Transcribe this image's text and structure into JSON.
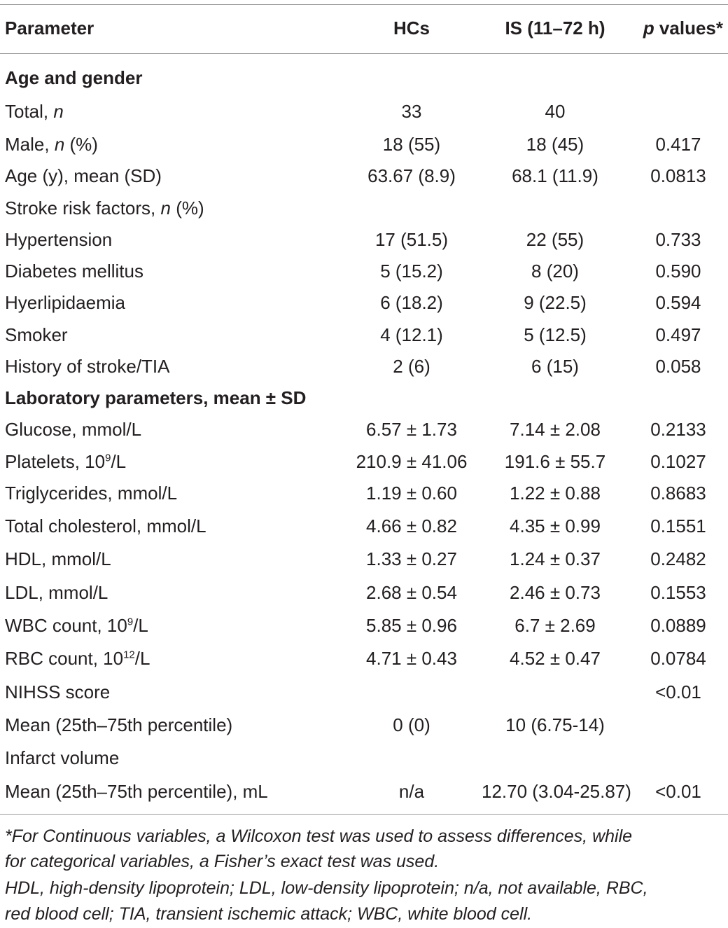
{
  "header": {
    "parameter": "Parameter",
    "hcs": "HCs",
    "is": "IS (11–72 h)",
    "p_values_p": "p",
    "p_values_rest": " values*"
  },
  "sections": {
    "age_gender": "Age and gender",
    "lab": "Laboratory parameters, mean ± SD"
  },
  "rows": {
    "total": {
      "label": "Total, ",
      "label_it": "n",
      "hcs": "33",
      "is": "40",
      "p": ""
    },
    "male": {
      "label": "Male, ",
      "label_it": "n",
      "label_after": " (%)",
      "hcs": "18 (55)",
      "is": "18 (45)",
      "p": "0.417"
    },
    "age": {
      "label": "Age (y), mean (SD)",
      "hcs": "63.67 (8.9)",
      "is": "68.1 (11.9)",
      "p": "0.0813"
    },
    "risk": {
      "label": "Stroke risk factors, ",
      "label_it": "n",
      "label_after": " (%)"
    },
    "hypertension": {
      "label": "Hypertension",
      "hcs": "17 (51.5)",
      "is": "22 (55)",
      "p": "0.733"
    },
    "diabetes": {
      "label": "Diabetes mellitus",
      "hcs": "5 (15.2)",
      "is": "8 (20)",
      "p": "0.590"
    },
    "hyperlipid": {
      "label": "Hyerlipidaemia",
      "hcs": "6 (18.2)",
      "is": "9 (22.5)",
      "p": "0.594"
    },
    "smoker": {
      "label": "Smoker",
      "hcs": "4 (12.1)",
      "is": "5 (12.5)",
      "p": "0.497"
    },
    "history": {
      "label": "History of stroke/TIA",
      "hcs": "2 (6)",
      "is": "6 (15)",
      "p": "0.058"
    },
    "glucose": {
      "label": "Glucose, mmol/L",
      "hcs": "6.57 ± 1.73",
      "is": "7.14 ± 2.08",
      "p": "0.2133"
    },
    "platelets": {
      "label": "Platelets, 10",
      "sup": "9",
      "label_after": "/L",
      "hcs": "210.9 ± 41.06",
      "is": "191.6 ± 55.7",
      "p": "0.1027"
    },
    "triglycerides": {
      "label": "Triglycerides, mmol/L",
      "hcs": "1.19 ± 0.60",
      "is": "1.22 ± 0.88",
      "p": "0.8683"
    },
    "cholesterol": {
      "label": "Total cholesterol, mmol/L",
      "hcs": "4.66 ± 0.82",
      "is": "4.35 ± 0.99",
      "p": "0.1551"
    },
    "hdl": {
      "label": "HDL, mmol/L",
      "hcs": "1.33 ± 0.27",
      "is": "1.24 ± 0.37",
      "p": "0.2482"
    },
    "ldl": {
      "label": "LDL, mmol/L",
      "hcs": "2.68 ± 0.54",
      "is": "2.46 ± 0.73",
      "p": "0.1553"
    },
    "wbc": {
      "label": "WBC count, 10",
      "sup": "9",
      "label_after": "/L",
      "hcs": "5.85 ± 0.96",
      "is": "6.7 ± 2.69",
      "p": "0.0889"
    },
    "rbc": {
      "label": "RBC count, 10",
      "sup": "12",
      "label_after": "/L",
      "hcs": "4.71 ± 0.43",
      "is": "4.52 ± 0.47",
      "p": "0.0784"
    },
    "nihss": {
      "label": "NIHSS score",
      "hcs": "",
      "is": "",
      "p": "<0.01"
    },
    "nihss_mean": {
      "label": "Mean (25th–75th percentile)",
      "hcs": "0 (0)",
      "is": "10 (6.75-14)",
      "p": ""
    },
    "infarct": {
      "label": "Infarct volume"
    },
    "infarct_mean": {
      "label": "Mean (25th–75th percentile), mL",
      "hcs": "n/a",
      "is": "12.70 (3.04-25.87)",
      "p": "<0.01"
    }
  },
  "footnotes": {
    "line1": "*For Continuous variables, a Wilcoxon test was used to assess differences, while",
    "line2": "for categorical variables, a Fisher’s exact test was used.",
    "line3": "HDL, high-density lipoprotein; LDL, low-density lipoprotein; n/a, not available, RBC,",
    "line4": "red blood cell; TIA, transient ischemic attack; WBC, white blood cell."
  }
}
